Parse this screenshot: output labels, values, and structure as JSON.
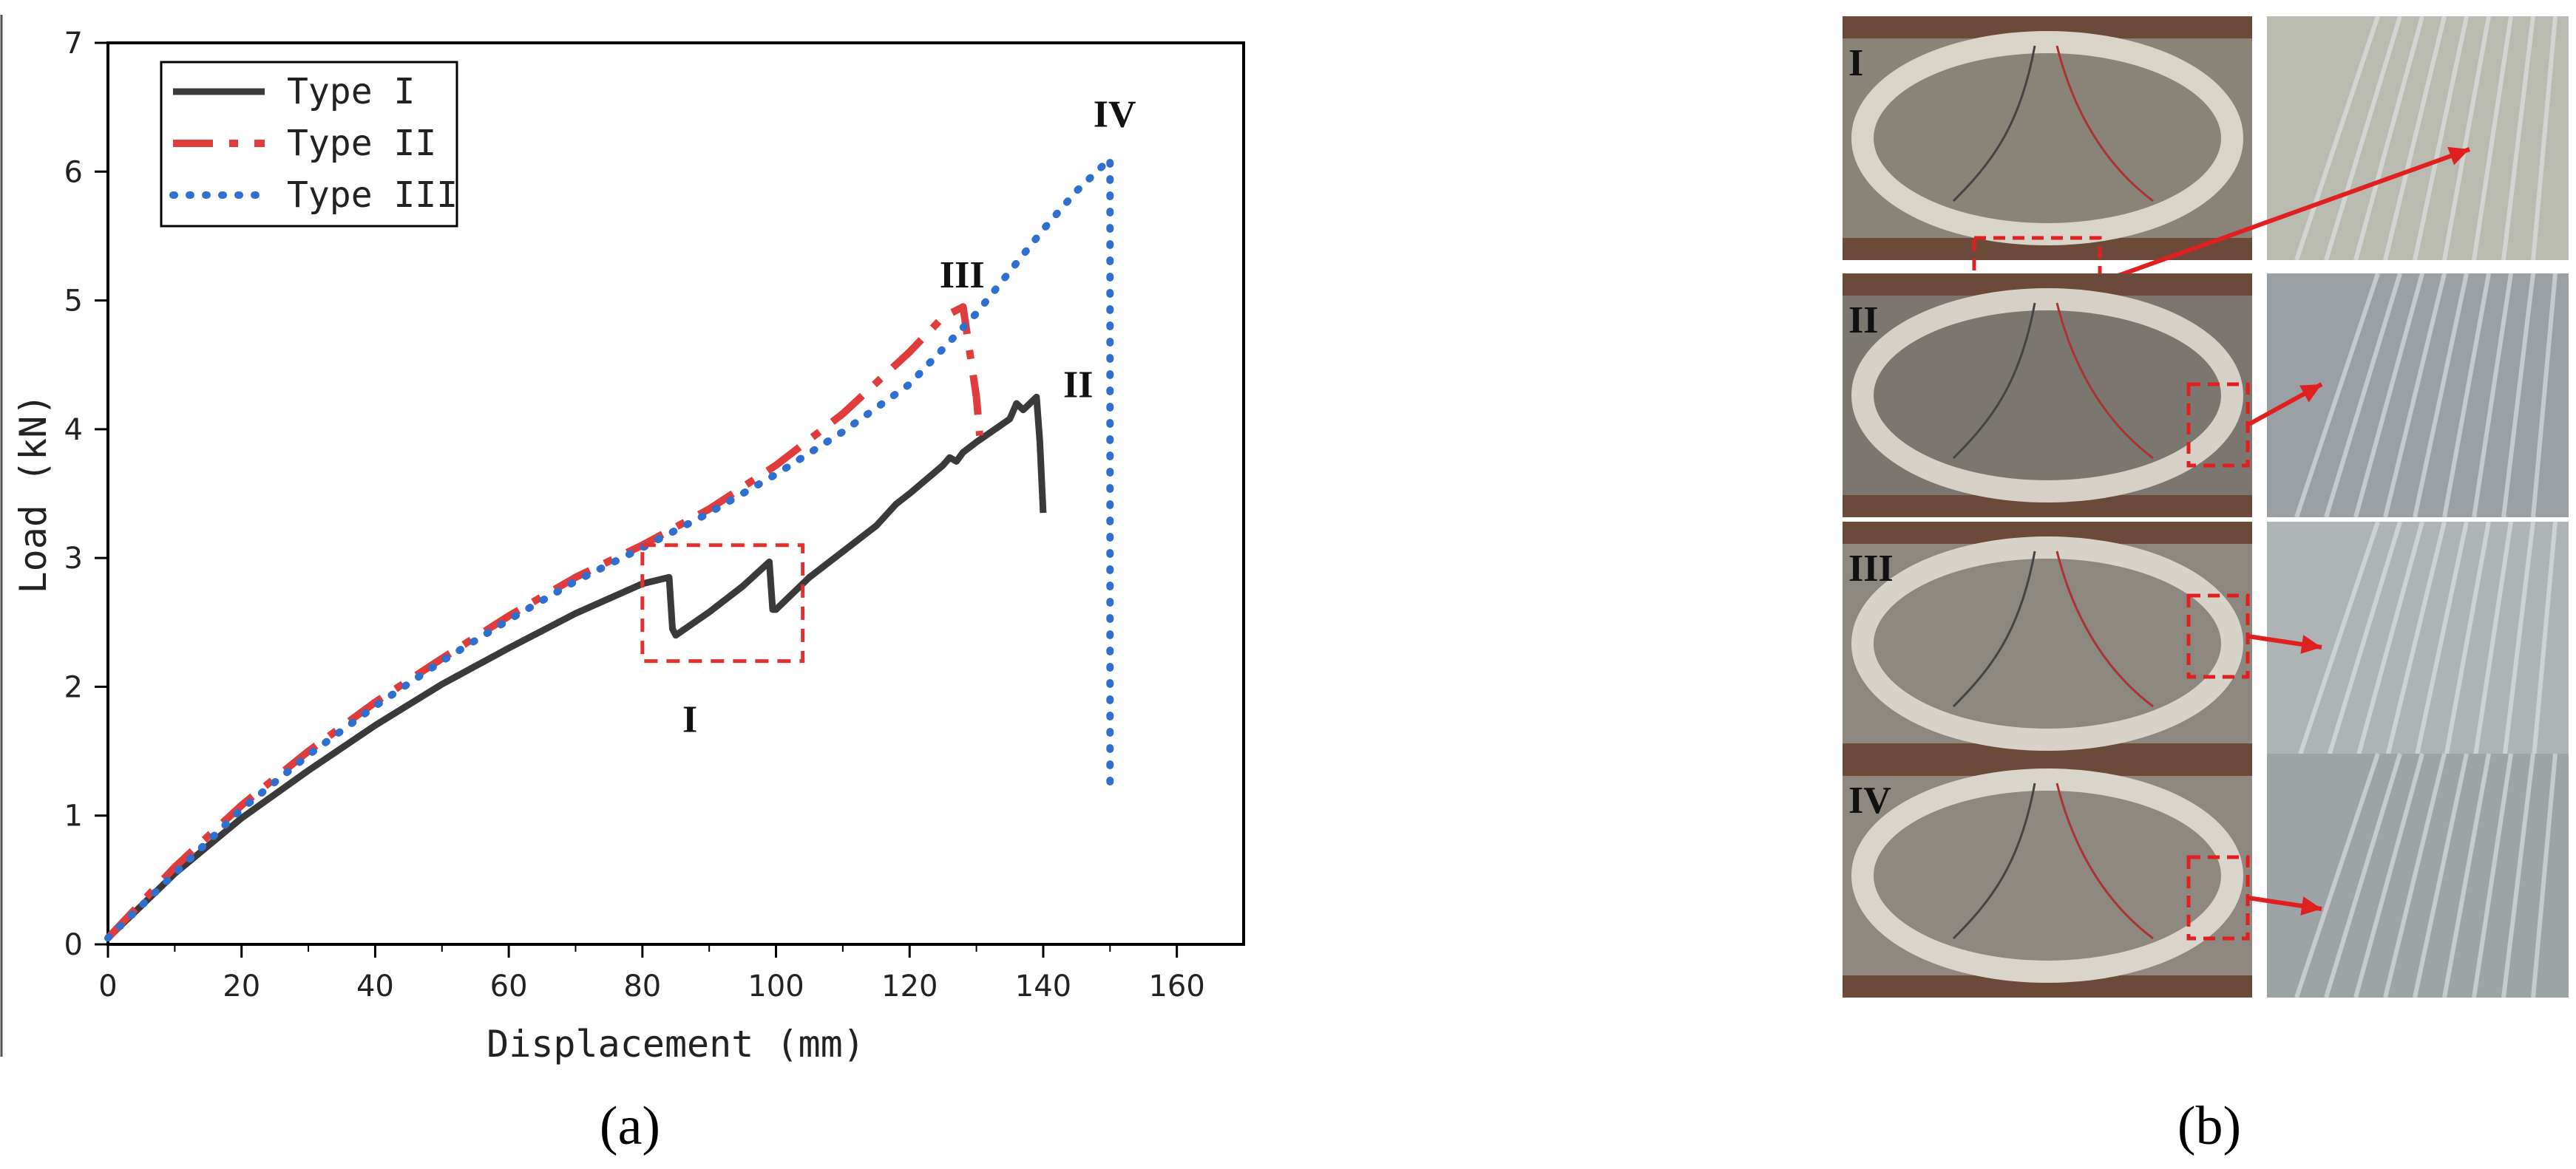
{
  "panel_a_label": "(a)",
  "panel_b_label": "(b)",
  "chart_data": {
    "type": "line",
    "title": "",
    "xlabel": "Displacement (mm)",
    "ylabel": "Load (kN)",
    "xlim": [
      0,
      170
    ],
    "ylim": [
      0,
      7
    ],
    "xticks": [
      0,
      20,
      40,
      60,
      80,
      100,
      120,
      140,
      160
    ],
    "yticks": [
      0,
      1,
      2,
      3,
      4,
      5,
      6,
      7
    ],
    "grid": false,
    "legend": "top-left",
    "series": [
      {
        "name": "Type I",
        "color": "#3a3a3a",
        "style": "solid",
        "x": [
          0,
          5,
          10,
          20,
          30,
          40,
          50,
          60,
          70,
          80,
          84,
          84.5,
          85,
          90,
          95,
          99,
          99.5,
          100,
          105,
          110,
          115,
          118,
          120,
          125,
          126,
          127,
          128,
          130,
          135,
          136,
          137,
          138,
          139,
          139.5,
          140
        ],
        "y": [
          0.05,
          0.3,
          0.55,
          0.98,
          1.35,
          1.7,
          2.02,
          2.3,
          2.57,
          2.8,
          2.85,
          2.45,
          2.4,
          2.58,
          2.78,
          2.97,
          2.6,
          2.6,
          2.85,
          3.05,
          3.25,
          3.42,
          3.5,
          3.72,
          3.78,
          3.75,
          3.82,
          3.9,
          4.08,
          4.2,
          4.15,
          4.2,
          4.25,
          3.9,
          3.35
        ]
      },
      {
        "name": "Type II",
        "color": "#e03c3c",
        "style": "dashed",
        "x": [
          0,
          10,
          20,
          30,
          40,
          50,
          60,
          70,
          80,
          90,
          100,
          110,
          120,
          125,
          128,
          129,
          130,
          130.5
        ],
        "y": [
          0.05,
          0.6,
          1.08,
          1.5,
          1.88,
          2.22,
          2.55,
          2.85,
          3.1,
          3.38,
          3.72,
          4.12,
          4.6,
          4.87,
          4.95,
          4.6,
          4.25,
          3.95
        ]
      },
      {
        "name": "Type III",
        "color": "#2f6fd0",
        "style": "dotted",
        "x": [
          0,
          10,
          20,
          30,
          40,
          50,
          60,
          70,
          80,
          90,
          100,
          110,
          120,
          130,
          140,
          145,
          150,
          150,
          150
        ],
        "y": [
          0.05,
          0.55,
          1.05,
          1.47,
          1.85,
          2.2,
          2.52,
          2.82,
          3.08,
          3.35,
          3.65,
          3.98,
          4.35,
          4.9,
          5.55,
          5.85,
          6.1,
          3.5,
          1.15
        ]
      }
    ],
    "annotations": [
      {
        "text": "I",
        "x": 86,
        "y": 1.65
      },
      {
        "text": "II",
        "x": 143,
        "y": 4.25
      },
      {
        "text": "III",
        "x": 124.5,
        "y": 5.1
      },
      {
        "text": "IV",
        "x": 147.5,
        "y": 6.35
      }
    ],
    "highlight_box": {
      "x0": 80,
      "x1": 104,
      "y0": 2.2,
      "y1": 3.1
    }
  },
  "photos": [
    {
      "label": "I",
      "bg": "#8a8478",
      "ring": "#d9d4c8",
      "zoom_bg": "#b9bab0"
    },
    {
      "label": "II",
      "bg": "#7b7770",
      "ring": "#d6d1c7",
      "zoom_bg": "#9aa0a3"
    },
    {
      "label": "III",
      "bg": "#8c877f",
      "ring": "#d8d3c9",
      "zoom_bg": "#aeb3b5"
    },
    {
      "label": "IV",
      "bg": "#8e8880",
      "ring": "#dad5cb",
      "zoom_bg": "#9ea3a6"
    }
  ]
}
